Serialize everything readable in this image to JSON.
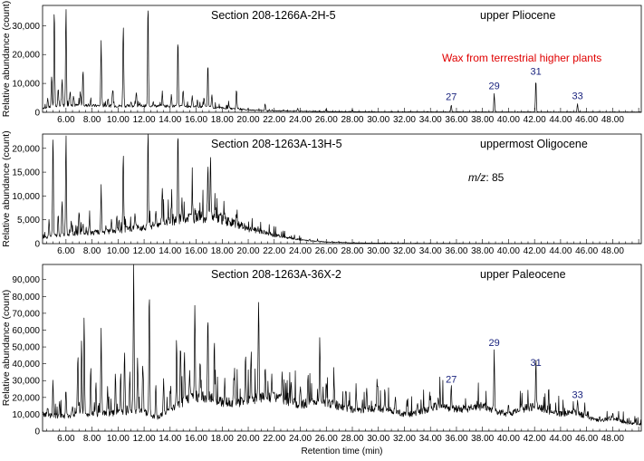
{
  "chart_data": [
    {
      "type": "line",
      "title": "Section 208-1266A-2H-5",
      "subtitle": "upper Pliocene",
      "ylabel": "Relative abundance (count)",
      "xlabel": "",
      "xlim": [
        4.2,
        50.2
      ],
      "ylim": [
        0,
        37000
      ],
      "yticks": [
        0,
        10000,
        20000,
        30000
      ],
      "ytick_labels": [
        "0",
        "10,000",
        "20,000",
        "30,000"
      ],
      "xticks": [
        6,
        8,
        10,
        12,
        14,
        16,
        18,
        20,
        22,
        24,
        26,
        28,
        30,
        32,
        34,
        36,
        38,
        40,
        42,
        44,
        46,
        48
      ],
      "xtick_labels": [
        "6.00",
        "8.00",
        "10.00",
        "12.00",
        "14.00",
        "16.00",
        "18.00",
        "20.00",
        "22.00",
        "24.00",
        "26.00",
        "28.00",
        "30.00",
        "32.00",
        "34.00",
        "36.00",
        "38.00",
        "40.00",
        "42.00",
        "44.00",
        "46.00",
        "48.00"
      ],
      "annotation": "Wax from terrestrial higher plants",
      "annotation_color": "#e00000",
      "peak_label_color": "#1a237e",
      "peak_labels": [
        {
          "label": "27",
          "x": 35.6,
          "y": 2600
        },
        {
          "label": "29",
          "x": 38.9,
          "y": 6500
        },
        {
          "label": "31",
          "x": 42.1,
          "y": 11500
        },
        {
          "label": "33",
          "x": 45.3,
          "y": 3000
        }
      ],
      "peaks": [
        {
          "x": 4.6,
          "y": 5000
        },
        {
          "x": 4.9,
          "y": 13000
        },
        {
          "x": 5.1,
          "y": 37000
        },
        {
          "x": 5.4,
          "y": 8000
        },
        {
          "x": 5.7,
          "y": 12000
        },
        {
          "x": 6.0,
          "y": 37000
        },
        {
          "x": 6.3,
          "y": 7000
        },
        {
          "x": 6.6,
          "y": 5000
        },
        {
          "x": 7.1,
          "y": 7000
        },
        {
          "x": 7.3,
          "y": 14000
        },
        {
          "x": 7.9,
          "y": 5000
        },
        {
          "x": 8.7,
          "y": 25000
        },
        {
          "x": 9.2,
          "y": 4000
        },
        {
          "x": 9.6,
          "y": 8000
        },
        {
          "x": 10.4,
          "y": 31000
        },
        {
          "x": 11.0,
          "y": 4000
        },
        {
          "x": 11.4,
          "y": 7000
        },
        {
          "x": 12.3,
          "y": 37000
        },
        {
          "x": 12.7,
          "y": 4000
        },
        {
          "x": 13.4,
          "y": 7000
        },
        {
          "x": 14.1,
          "y": 6000
        },
        {
          "x": 14.6,
          "y": 25000
        },
        {
          "x": 15.0,
          "y": 8000
        },
        {
          "x": 15.7,
          "y": 6000
        },
        {
          "x": 16.1,
          "y": 4000
        },
        {
          "x": 16.6,
          "y": 5000
        },
        {
          "x": 16.9,
          "y": 17000
        },
        {
          "x": 17.2,
          "y": 6000
        },
        {
          "x": 18.5,
          "y": 3000
        },
        {
          "x": 19.1,
          "y": 8000
        },
        {
          "x": 21.3,
          "y": 3000
        },
        {
          "x": 23.8,
          "y": 1500
        },
        {
          "x": 26.0,
          "y": 1200
        },
        {
          "x": 28.0,
          "y": 1000
        },
        {
          "x": 35.6,
          "y": 2600
        },
        {
          "x": 38.9,
          "y": 6500
        },
        {
          "x": 42.1,
          "y": 11500
        },
        {
          "x": 45.3,
          "y": 3000
        }
      ],
      "envelope": [
        [
          4.2,
          1500
        ],
        [
          6,
          2500
        ],
        [
          8,
          2300
        ],
        [
          10,
          2200
        ],
        [
          12,
          2200
        ],
        [
          14,
          2200
        ],
        [
          16,
          2000
        ],
        [
          18,
          1500
        ],
        [
          20,
          800
        ],
        [
          22,
          500
        ],
        [
          25,
          300
        ],
        [
          30,
          150
        ],
        [
          40,
          120
        ],
        [
          50.2,
          100
        ]
      ]
    },
    {
      "type": "line",
      "title": "Section 208-1263A-13H-5",
      "subtitle": "uppermost Oligocene",
      "ylabel": "Relative abundance (count)",
      "xlabel": "",
      "xlim": [
        4.2,
        50.2
      ],
      "ylim": [
        0,
        23000
      ],
      "yticks": [
        0,
        5000,
        10000,
        15000,
        20000
      ],
      "ytick_labels": [
        "0",
        "5,000",
        "10,000",
        "15,000",
        "20,000"
      ],
      "xticks": [
        6,
        8,
        10,
        12,
        14,
        16,
        18,
        20,
        22,
        24,
        26,
        28,
        30,
        32,
        34,
        36,
        38,
        40,
        42,
        44,
        46,
        48
      ],
      "xtick_labels": [
        "6.00",
        "8.00",
        "10.00",
        "12.00",
        "14.00",
        "16.00",
        "18.00",
        "20.00",
        "22.00",
        "24.00",
        "26.00",
        "28.00",
        "30.00",
        "32.00",
        "34.00",
        "36.00",
        "38.00",
        "40.00",
        "42.00",
        "44.00",
        "46.00",
        "48.00"
      ],
      "annotation_prefix": "m/z",
      "annotation_value": ": 85",
      "peaks": [
        {
          "x": 4.7,
          "y": 5000
        },
        {
          "x": 5.0,
          "y": 23000
        },
        {
          "x": 5.4,
          "y": 6000
        },
        {
          "x": 5.7,
          "y": 9000
        },
        {
          "x": 6.0,
          "y": 23000
        },
        {
          "x": 6.4,
          "y": 5000
        },
        {
          "x": 7.0,
          "y": 7000
        },
        {
          "x": 7.3,
          "y": 4000
        },
        {
          "x": 7.8,
          "y": 4500
        },
        {
          "x": 8.7,
          "y": 11000
        },
        {
          "x": 9.5,
          "y": 5000
        },
        {
          "x": 9.9,
          "y": 6000
        },
        {
          "x": 10.4,
          "y": 19000
        },
        {
          "x": 11.3,
          "y": 7000
        },
        {
          "x": 12.3,
          "y": 23000
        },
        {
          "x": 12.9,
          "y": 6000
        },
        {
          "x": 13.4,
          "y": 11500
        },
        {
          "x": 14.1,
          "y": 8000
        },
        {
          "x": 14.6,
          "y": 23000
        },
        {
          "x": 14.9,
          "y": 9000
        },
        {
          "x": 15.7,
          "y": 11500
        },
        {
          "x": 16.2,
          "y": 8000
        },
        {
          "x": 16.9,
          "y": 17000
        },
        {
          "x": 17.1,
          "y": 18500
        },
        {
          "x": 17.5,
          "y": 7000
        },
        {
          "x": 18.2,
          "y": 6500
        },
        {
          "x": 19.1,
          "y": 6500
        }
      ],
      "envelope": [
        [
          4.2,
          1200
        ],
        [
          6,
          2000
        ],
        [
          8,
          2300
        ],
        [
          10,
          2700
        ],
        [
          12,
          3500
        ],
        [
          14,
          4800
        ],
        [
          16,
          5600
        ],
        [
          17.5,
          5500
        ],
        [
          19,
          4200
        ],
        [
          20,
          3200
        ],
        [
          22,
          1800
        ],
        [
          24,
          800
        ],
        [
          26,
          350
        ],
        [
          28,
          150
        ],
        [
          32,
          60
        ],
        [
          40,
          30
        ],
        [
          50.2,
          20
        ]
      ]
    },
    {
      "type": "line",
      "title": "Section 208-1263A-36X-2",
      "subtitle": "upper Paleocene",
      "ylabel": "Relative abundance (count)",
      "xlabel": "Retention time (min)",
      "xlim": [
        4.2,
        50.2
      ],
      "ylim": [
        0,
        99000
      ],
      "yticks": [
        0,
        10000,
        20000,
        30000,
        40000,
        50000,
        60000,
        70000,
        80000,
        90000
      ],
      "ytick_labels": [
        "0",
        "10,000",
        "20,000",
        "30,000",
        "40,000",
        "50,000",
        "60,000",
        "70,000",
        "80,000",
        "90,000"
      ],
      "xticks": [
        6,
        8,
        10,
        12,
        14,
        16,
        18,
        20,
        22,
        24,
        26,
        28,
        30,
        32,
        34,
        36,
        38,
        40,
        42,
        44,
        46,
        48
      ],
      "xtick_labels": [
        "6.00",
        "8.00",
        "10.00",
        "12.00",
        "14.00",
        "16.00",
        "18.00",
        "20.00",
        "22.00",
        "24.00",
        "26.00",
        "28.00",
        "30.00",
        "32.00",
        "34.00",
        "36.00",
        "38.00",
        "40.00",
        "42.00",
        "44.00",
        "46.00",
        "48.00"
      ],
      "peak_label_color": "#1a237e",
      "peak_labels": [
        {
          "label": "27",
          "x": 35.6,
          "y": 26000
        },
        {
          "label": "29",
          "x": 38.9,
          "y": 48000
        },
        {
          "label": "31",
          "x": 42.1,
          "y": 36000
        },
        {
          "label": "33",
          "x": 45.3,
          "y": 17000
        }
      ],
      "peaks": [
        {
          "x": 4.6,
          "y": 15000
        },
        {
          "x": 5.0,
          "y": 30000
        },
        {
          "x": 5.5,
          "y": 18000
        },
        {
          "x": 6.0,
          "y": 22000
        },
        {
          "x": 6.5,
          "y": 16000
        },
        {
          "x": 6.9,
          "y": 42000
        },
        {
          "x": 7.2,
          "y": 55000
        },
        {
          "x": 7.4,
          "y": 63000
        },
        {
          "x": 7.9,
          "y": 38000
        },
        {
          "x": 8.3,
          "y": 30000
        },
        {
          "x": 8.7,
          "y": 57000
        },
        {
          "x": 9.2,
          "y": 25000
        },
        {
          "x": 9.8,
          "y": 35000
        },
        {
          "x": 10.2,
          "y": 34000
        },
        {
          "x": 10.5,
          "y": 49000
        },
        {
          "x": 10.9,
          "y": 35000
        },
        {
          "x": 11.2,
          "y": 99000
        },
        {
          "x": 11.5,
          "y": 45000
        },
        {
          "x": 11.9,
          "y": 40000
        },
        {
          "x": 12.4,
          "y": 86000
        },
        {
          "x": 12.9,
          "y": 28000
        },
        {
          "x": 13.5,
          "y": 30000
        },
        {
          "x": 14.0,
          "y": 24000
        },
        {
          "x": 14.5,
          "y": 46000
        },
        {
          "x": 14.8,
          "y": 53000
        },
        {
          "x": 15.1,
          "y": 47000
        },
        {
          "x": 15.5,
          "y": 38000
        },
        {
          "x": 15.9,
          "y": 76000
        },
        {
          "x": 16.3,
          "y": 42000
        },
        {
          "x": 16.9,
          "y": 69000
        },
        {
          "x": 17.4,
          "y": 35000
        },
        {
          "x": 18.2,
          "y": 30000
        },
        {
          "x": 18.9,
          "y": 30000
        },
        {
          "x": 19.8,
          "y": 47000
        },
        {
          "x": 20.2,
          "y": 38000
        },
        {
          "x": 20.8,
          "y": 80000
        },
        {
          "x": 21.3,
          "y": 40000
        },
        {
          "x": 21.8,
          "y": 33000
        },
        {
          "x": 22.6,
          "y": 32000
        },
        {
          "x": 23.3,
          "y": 30000
        },
        {
          "x": 24.0,
          "y": 28000
        },
        {
          "x": 24.6,
          "y": 33000
        },
        {
          "x": 25.5,
          "y": 54000
        },
        {
          "x": 26.0,
          "y": 32000
        },
        {
          "x": 26.6,
          "y": 28000
        },
        {
          "x": 27.5,
          "y": 26000
        },
        {
          "x": 28.3,
          "y": 23000
        },
        {
          "x": 29.1,
          "y": 24000
        },
        {
          "x": 29.9,
          "y": 30000
        },
        {
          "x": 30.5,
          "y": 25000
        },
        {
          "x": 31.3,
          "y": 22000
        },
        {
          "x": 32.2,
          "y": 19000
        },
        {
          "x": 33.0,
          "y": 17000
        },
        {
          "x": 34.0,
          "y": 20000
        },
        {
          "x": 34.6,
          "y": 22000
        },
        {
          "x": 35.6,
          "y": 26000
        },
        {
          "x": 36.6,
          "y": 17000
        },
        {
          "x": 37.6,
          "y": 17000
        },
        {
          "x": 38.9,
          "y": 48000
        },
        {
          "x": 40.0,
          "y": 15000
        },
        {
          "x": 41.0,
          "y": 14000
        },
        {
          "x": 42.1,
          "y": 36000
        },
        {
          "x": 43.0,
          "y": 13000
        },
        {
          "x": 44.2,
          "y": 12000
        },
        {
          "x": 45.3,
          "y": 17000
        },
        {
          "x": 47.0,
          "y": 9000
        },
        {
          "x": 48.0,
          "y": 10000
        }
      ],
      "envelope": [
        [
          4.2,
          10000
        ],
        [
          5,
          9000
        ],
        [
          6,
          9000
        ],
        [
          7,
          10000
        ],
        [
          8,
          10000
        ],
        [
          10,
          11000
        ],
        [
          12,
          11500
        ],
        [
          13,
          8000
        ],
        [
          14,
          12000
        ],
        [
          15,
          17000
        ],
        [
          16,
          21000
        ],
        [
          17,
          20000
        ],
        [
          18,
          17000
        ],
        [
          19,
          17000
        ],
        [
          20,
          18000
        ],
        [
          21,
          20000
        ],
        [
          22,
          20000
        ],
        [
          23,
          18000
        ],
        [
          24,
          16000
        ],
        [
          25,
          17000
        ],
        [
          26,
          17000
        ],
        [
          27,
          15000
        ],
        [
          28,
          13000
        ],
        [
          29,
          13000
        ],
        [
          30,
          14000
        ],
        [
          31,
          12000
        ],
        [
          32,
          10000
        ],
        [
          33,
          10500
        ],
        [
          34,
          14000
        ],
        [
          35,
          15000
        ],
        [
          36,
          13000
        ],
        [
          37,
          13500
        ],
        [
          38,
          15000
        ],
        [
          39,
          12000
        ],
        [
          40,
          10000
        ],
        [
          41,
          13000
        ],
        [
          42,
          15000
        ],
        [
          43,
          12000
        ],
        [
          44,
          10000
        ],
        [
          45,
          12000
        ],
        [
          46,
          8500
        ],
        [
          47,
          6000
        ],
        [
          48,
          8000
        ],
        [
          49,
          5000
        ],
        [
          50.2,
          4000
        ]
      ]
    }
  ]
}
